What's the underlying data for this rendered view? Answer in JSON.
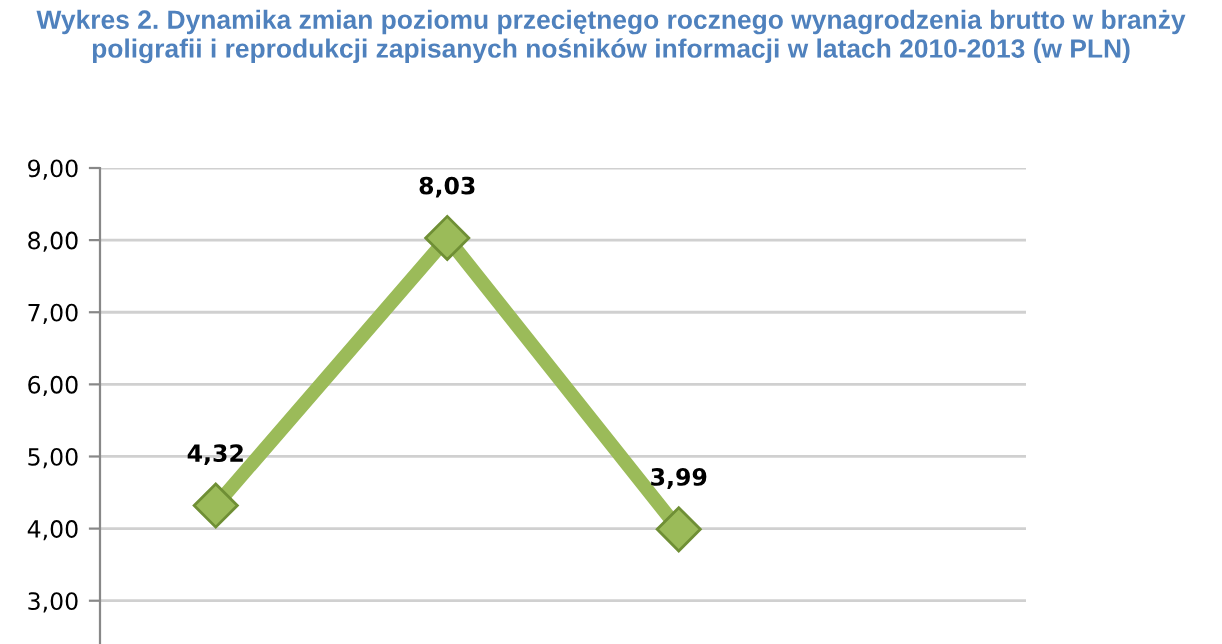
{
  "chart_data": {
    "type": "line",
    "title": "Wykres 2. Dynamika zmian poziomu przeciętnego rocznego wynagrodzenia brutto w branży poligrafii i reprodukcji zapisanych nośników informacji w latach 2010-2013 (w PLN)",
    "categories": [
      null,
      null,
      null,
      null
    ],
    "series": [
      {
        "color": "#9bbb59",
        "values": [
          4.32,
          8.03,
          3.99,
          null
        ]
      }
    ],
    "value_labels": [
      "4,32",
      "8,03",
      "3,99",
      null
    ],
    "ylim": [
      2.4,
      9
    ],
    "yticks": [
      {
        "value": 3,
        "label": "3,00"
      },
      {
        "value": 4,
        "label": "4,00"
      },
      {
        "value": 5,
        "label": "5,00"
      },
      {
        "value": 6,
        "label": "6,00"
      },
      {
        "value": 7,
        "label": "7,00"
      },
      {
        "value": 8,
        "label": "8,00"
      },
      {
        "value": 9,
        "label": "9,00"
      }
    ],
    "grid": "y",
    "marker": "diamond",
    "line_style": "solid",
    "legend": false
  }
}
